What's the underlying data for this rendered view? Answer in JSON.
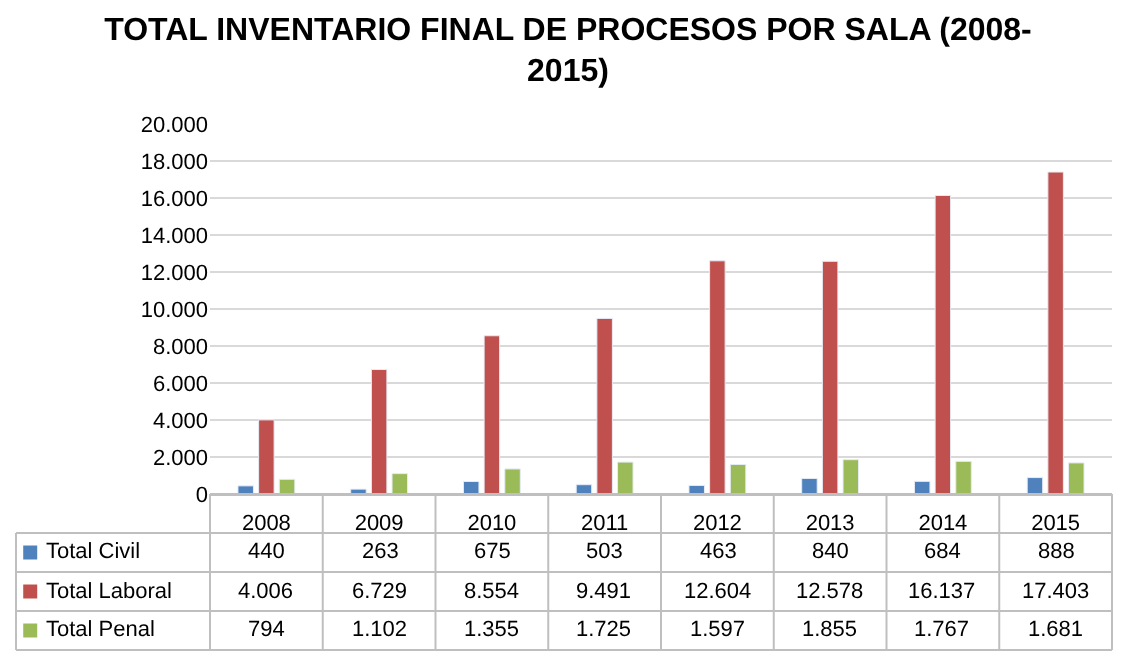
{
  "chart_data": {
    "type": "bar",
    "title": "TOTAL INVENTARIO FINAL DE PROCESOS POR SALA (2008-\n2015)",
    "categories": [
      "2008",
      "2009",
      "2010",
      "2011",
      "2012",
      "2013",
      "2014",
      "2015"
    ],
    "series": [
      {
        "name": "Total Civil",
        "color": "#4f81bd",
        "values": [
          440,
          263,
          675,
          503,
          463,
          840,
          684,
          888
        ],
        "value_labels": [
          "440",
          "263",
          "675",
          "503",
          "463",
          "840",
          "684",
          "888"
        ]
      },
      {
        "name": "Total Laboral",
        "color": "#c0504d",
        "values": [
          4006,
          6729,
          8554,
          9491,
          12604,
          12578,
          16137,
          17403
        ],
        "value_labels": [
          "4.006",
          "6.729",
          "8.554",
          "9.491",
          "12.604",
          "12.578",
          "16.137",
          "17.403"
        ]
      },
      {
        "name": "Total Penal",
        "color": "#9bbb59",
        "values": [
          794,
          1102,
          1355,
          1725,
          1597,
          1855,
          1767,
          1681
        ],
        "value_labels": [
          "794",
          "1.102",
          "1.355",
          "1.725",
          "1.597",
          "1.855",
          "1.767",
          "1.681"
        ]
      }
    ],
    "ylim": [
      0,
      20000
    ],
    "yticks": [
      {
        "value": 0,
        "label": "0"
      },
      {
        "value": 2000,
        "label": "2.000"
      },
      {
        "value": 4000,
        "label": "4.000"
      },
      {
        "value": 6000,
        "label": "6.000"
      },
      {
        "value": 8000,
        "label": "8.000"
      },
      {
        "value": 10000,
        "label": "10.000"
      },
      {
        "value": 12000,
        "label": "12.000"
      },
      {
        "value": 14000,
        "label": "14.000"
      },
      {
        "value": 16000,
        "label": "16.000"
      },
      {
        "value": 18000,
        "label": "18.000"
      },
      {
        "value": 20000,
        "label": "20.000"
      }
    ],
    "grid": "y",
    "legend": "bottom left"
  }
}
